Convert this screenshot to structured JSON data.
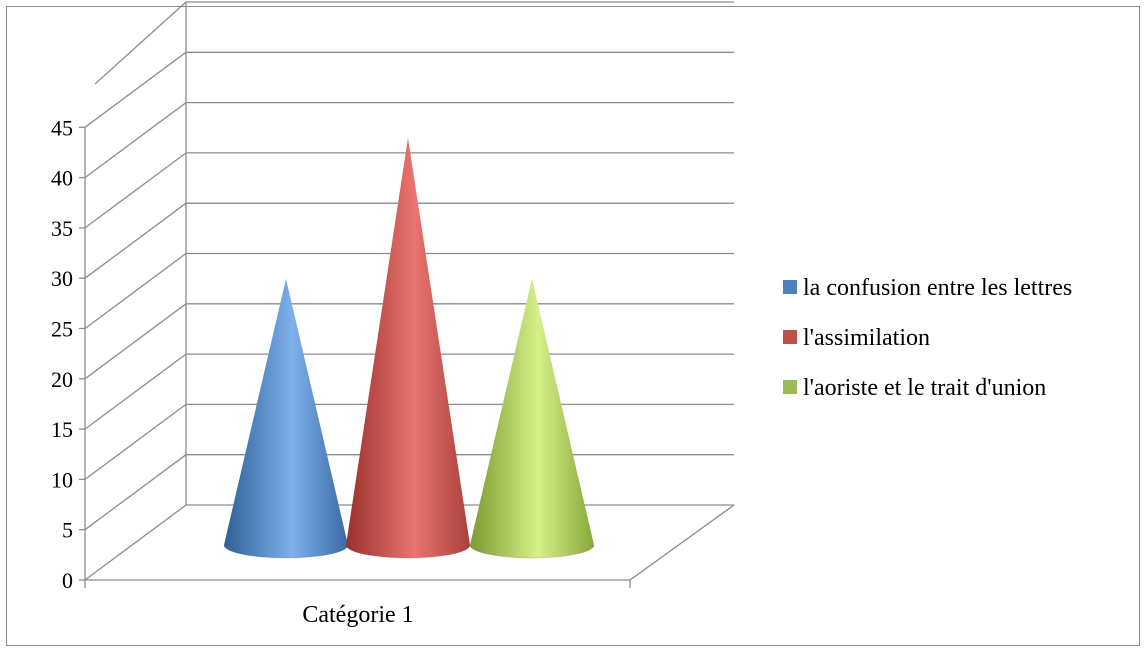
{
  "chart_data": {
    "type": "bar",
    "shape": "3d-cone",
    "categories": [
      "Catégorie 1"
    ],
    "series": [
      {
        "name": "la confusion entre les lettres",
        "values": [
          30
        ],
        "color": "#4f81bd"
      },
      {
        "name": "l'assimilation",
        "values": [
          44
        ],
        "color": "#c0504d"
      },
      {
        "name": "l'aoriste et le trait d'union",
        "values": [
          30
        ],
        "color": "#9bbb59"
      }
    ],
    "ylim": [
      0,
      45
    ],
    "yticks": [
      "0",
      "5",
      "10",
      "15",
      "20",
      "25",
      "30",
      "35",
      "40",
      "45"
    ],
    "grid": true,
    "legend_position": "right"
  }
}
